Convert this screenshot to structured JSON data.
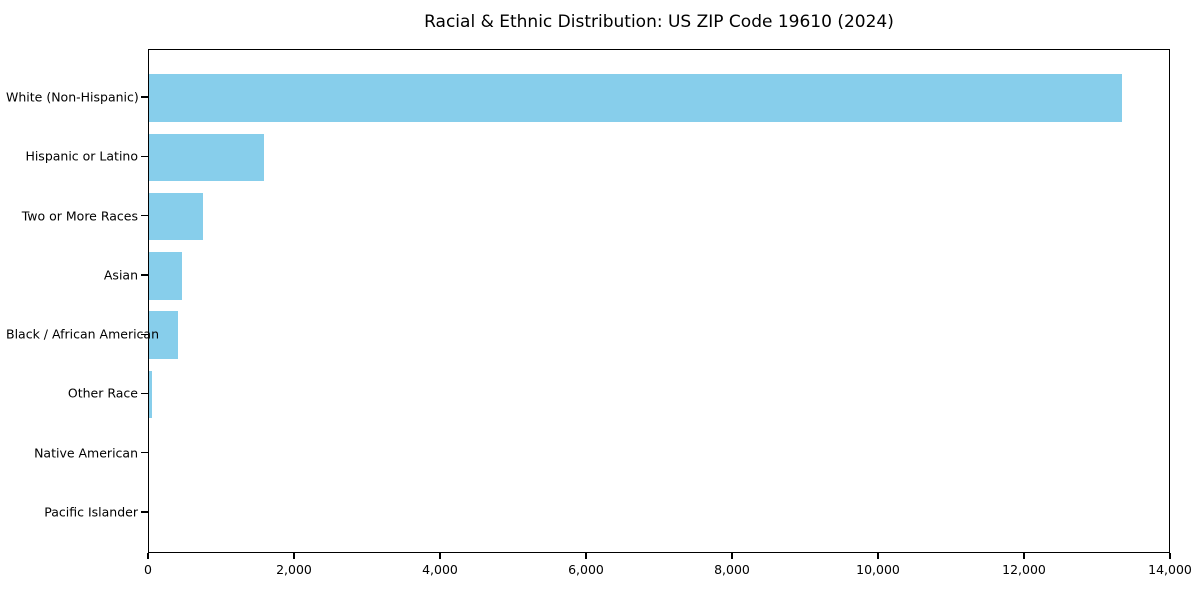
{
  "chart_data": {
    "type": "bar",
    "orientation": "horizontal",
    "title": "Racial & Ethnic Distribution: US ZIP Code 19610 (2024)",
    "categories": [
      "White (Non-Hispanic)",
      "Hispanic or Latino",
      "Two or More Races",
      "Asian",
      "Black / African American",
      "Other Race",
      "Native American",
      "Pacific Islander"
    ],
    "values": [
      13330,
      1570,
      745,
      455,
      395,
      40,
      0,
      0
    ],
    "xlabel": "",
    "ylabel": "",
    "xlim": [
      0,
      14000
    ],
    "x_ticks": [
      0,
      2000,
      4000,
      6000,
      8000,
      10000,
      12000,
      14000
    ],
    "x_tick_labels": [
      "0",
      "2,000",
      "4,000",
      "6,000",
      "8,000",
      "10,000",
      "12,000",
      "14,000"
    ],
    "bar_color": "#87CEEB",
    "axis_color": "#000000",
    "background_color": "#ffffff",
    "grid": false,
    "legend": false
  }
}
